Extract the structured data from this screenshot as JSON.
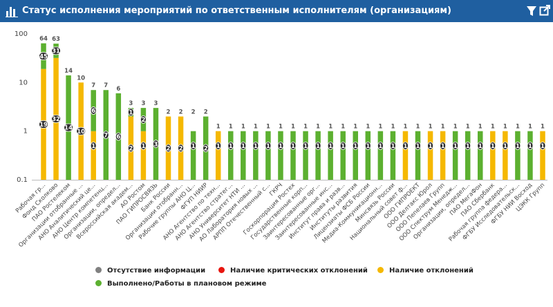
{
  "header": {
    "title": "Статус исполнения мероприятий по ответственным исполнителям (организациям)",
    "logo_icon": "bar-chart-icon",
    "filter_icon": "filter-icon",
    "external_icon": "external-link-icon",
    "bg_color": "#1f5fa0"
  },
  "chart_data": {
    "type": "bar",
    "stacked": true,
    "y_scale": "log",
    "ylim": [
      0.1,
      100
    ],
    "y_ticks": [
      "0.1",
      "1",
      "10",
      "100"
    ],
    "grid": false,
    "legend_position": "bottom",
    "categories": [
      "Рабочая гр...",
      "Фонд Сколково",
      "ПАО Ростелеком",
      "Организации отобранные ...",
      "АНО Аналитический це...",
      "АНО Центр компетенц...",
      "Организации, определ...",
      "Всероссийская академ...",
      "АО Ростом",
      "ПАО ГИПРОСВЯЗЬ",
      "Банк России",
      "Организации отобранн...",
      "Рабочие группы АНО Ц...",
      "ФГУП НИИР",
      "АНО Агентство по техн...",
      "АНО Агентство стратег...",
      "АНО Университет НТИ ...",
      "АО Лаборатория новых ...",
      "АРПП Отечественный с...",
      "ГКРЧ",
      "Госкорпорация Ростех",
      "Государственные корп...",
      "Заинтересованные орг...",
      "Заинтересованные инс...",
      "Институт права и разв...",
      "Институты развития",
      "Лицензиаты ФСБ России",
      "Медиа-Коммуникационн...",
      "Минсвязь России",
      "Национальный совет ф...",
      "ООО ГИПРОЕКТ",
      "ООО Делтакс Юрол",
      "ООО Пепелаев Групп",
      "ООО Спектрум Менедж...",
      "Организации, определ...",
      "ПАО МегаФон",
      "ПАО Сбербанк",
      "Рабочая группа федера...",
      "ФГБУ Исследовательск...",
      "ФГБУ НИИ Восход",
      "ЦЭКК Групп"
    ],
    "series": [
      {
        "name": "Отсутствие информации",
        "color": "#808080",
        "values": [
          0,
          0,
          0,
          0,
          0,
          0,
          0,
          0,
          0,
          0,
          0,
          0,
          0,
          0,
          0,
          0,
          0,
          0,
          0,
          0,
          0,
          0,
          0,
          0,
          0,
          0,
          0,
          0,
          0,
          0,
          0,
          0,
          0,
          0,
          0,
          0,
          0,
          0,
          0,
          0,
          0
        ]
      },
      {
        "name": "Наличие критических отклонений",
        "color": "#e8150f",
        "values": [
          0,
          0,
          0,
          0,
          0,
          0,
          0,
          0,
          0,
          0,
          0,
          0,
          0,
          0,
          0,
          0,
          0,
          0,
          0,
          0,
          0,
          0,
          0,
          0,
          0,
          0,
          0,
          0,
          0,
          0,
          0,
          0,
          0,
          0,
          0,
          0,
          0,
          0,
          0,
          0,
          0
        ]
      },
      {
        "name": "Наличие отклонений",
        "color": "#f5b800",
        "values": [
          19,
          32,
          0,
          10,
          1,
          0,
          0,
          2,
          1,
          0,
          2,
          2,
          0,
          0,
          1,
          0,
          0,
          0,
          0,
          0,
          0,
          0,
          0,
          0,
          0,
          0,
          0,
          0,
          0,
          1,
          0,
          1,
          1,
          0,
          0,
          0,
          1,
          1,
          0,
          0,
          1
        ]
      },
      {
        "name": "Выполнено/Работы в плановом режиме",
        "color": "#5cb030",
        "values": [
          45,
          31,
          14,
          0,
          6,
          7,
          6,
          1,
          2,
          3,
          0,
          0,
          1,
          2,
          0,
          1,
          1,
          1,
          1,
          1,
          1,
          1,
          1,
          1,
          1,
          1,
          1,
          1,
          1,
          0,
          1,
          0,
          0,
          1,
          1,
          1,
          0,
          0,
          1,
          1,
          0
        ]
      }
    ],
    "totals": [
      64,
      63,
      14,
      10,
      7,
      7,
      6,
      3,
      3,
      3,
      2,
      2,
      2,
      2,
      1,
      1,
      1,
      1,
      1,
      1,
      1,
      1,
      1,
      1,
      1,
      1,
      1,
      1,
      1,
      1,
      1,
      1,
      1,
      1,
      1,
      1,
      1,
      1,
      1,
      1,
      1
    ]
  }
}
